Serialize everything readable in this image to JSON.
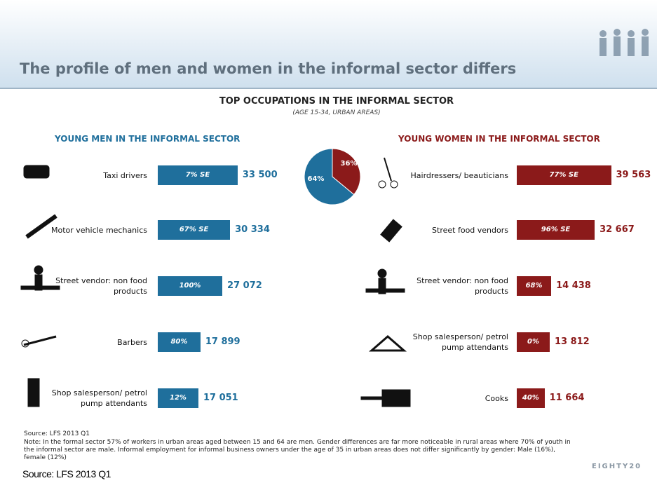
{
  "header": {
    "title": "The profile of men and women in the informal sector differs"
  },
  "infographic": {
    "title": "TOP OCCUPATIONS IN THE INFORMAL SECTOR",
    "subtitle": "(AGE 15-34, URBAN AREAS)"
  },
  "chart_data": [
    {
      "type": "bar",
      "orientation": "horizontal",
      "title": "YOUNG MEN IN THE INFORMAL SECTOR",
      "categories": [
        "Taxi drivers",
        "Motor vehicle mechanics",
        "Street vendor: non food products",
        "Barbers",
        "Shop salesperson/ petrol pump attendants"
      ],
      "values": [
        33500,
        30334,
        27072,
        17899,
        17051
      ],
      "value_labels": [
        "33 500",
        "30 334",
        "27 072",
        "17 899",
        "17 051"
      ],
      "bar_labels": [
        "7% SE",
        "67% SE",
        "100%",
        "80%",
        "12%"
      ],
      "color": "#1f6f9c"
    },
    {
      "type": "bar",
      "orientation": "horizontal",
      "title": "YOUNG WOMEN IN THE INFORMAL SECTOR",
      "categories": [
        "Hairdressers/ beauticians",
        "Street food vendors",
        "Street vendor: non food products",
        "Shop salesperson/ petrol pump attendants",
        "Cooks"
      ],
      "values": [
        39563,
        32667,
        14438,
        13812,
        11664
      ],
      "value_labels": [
        "39 563",
        "32 667",
        "14 438",
        "13 812",
        "11 664"
      ],
      "bar_labels": [
        "77% SE",
        "96% SE",
        "68%",
        "0%",
        "40%"
      ],
      "color": "#8b1a1a"
    },
    {
      "type": "pie",
      "values": [
        64,
        36
      ],
      "value_labels": [
        "64%",
        "36%"
      ],
      "colors": [
        "#1f6f9c",
        "#8b1a1a"
      ]
    }
  ],
  "source": "Source: LFS 2013 Q1",
  "note": "Note: In the formal sector 57% of workers in urban areas aged between 15 and 64 are men. Gender differences are far more noticeable in rural areas where 70% of youth in the informal sector are male. Informal employment for informal business owners under the age of 35 in urban areas does not differ significantly by gender: Male (16%), female (12%)",
  "footer_source": "Source: LFS 2013 Q1",
  "logo": "EIGHTY20"
}
